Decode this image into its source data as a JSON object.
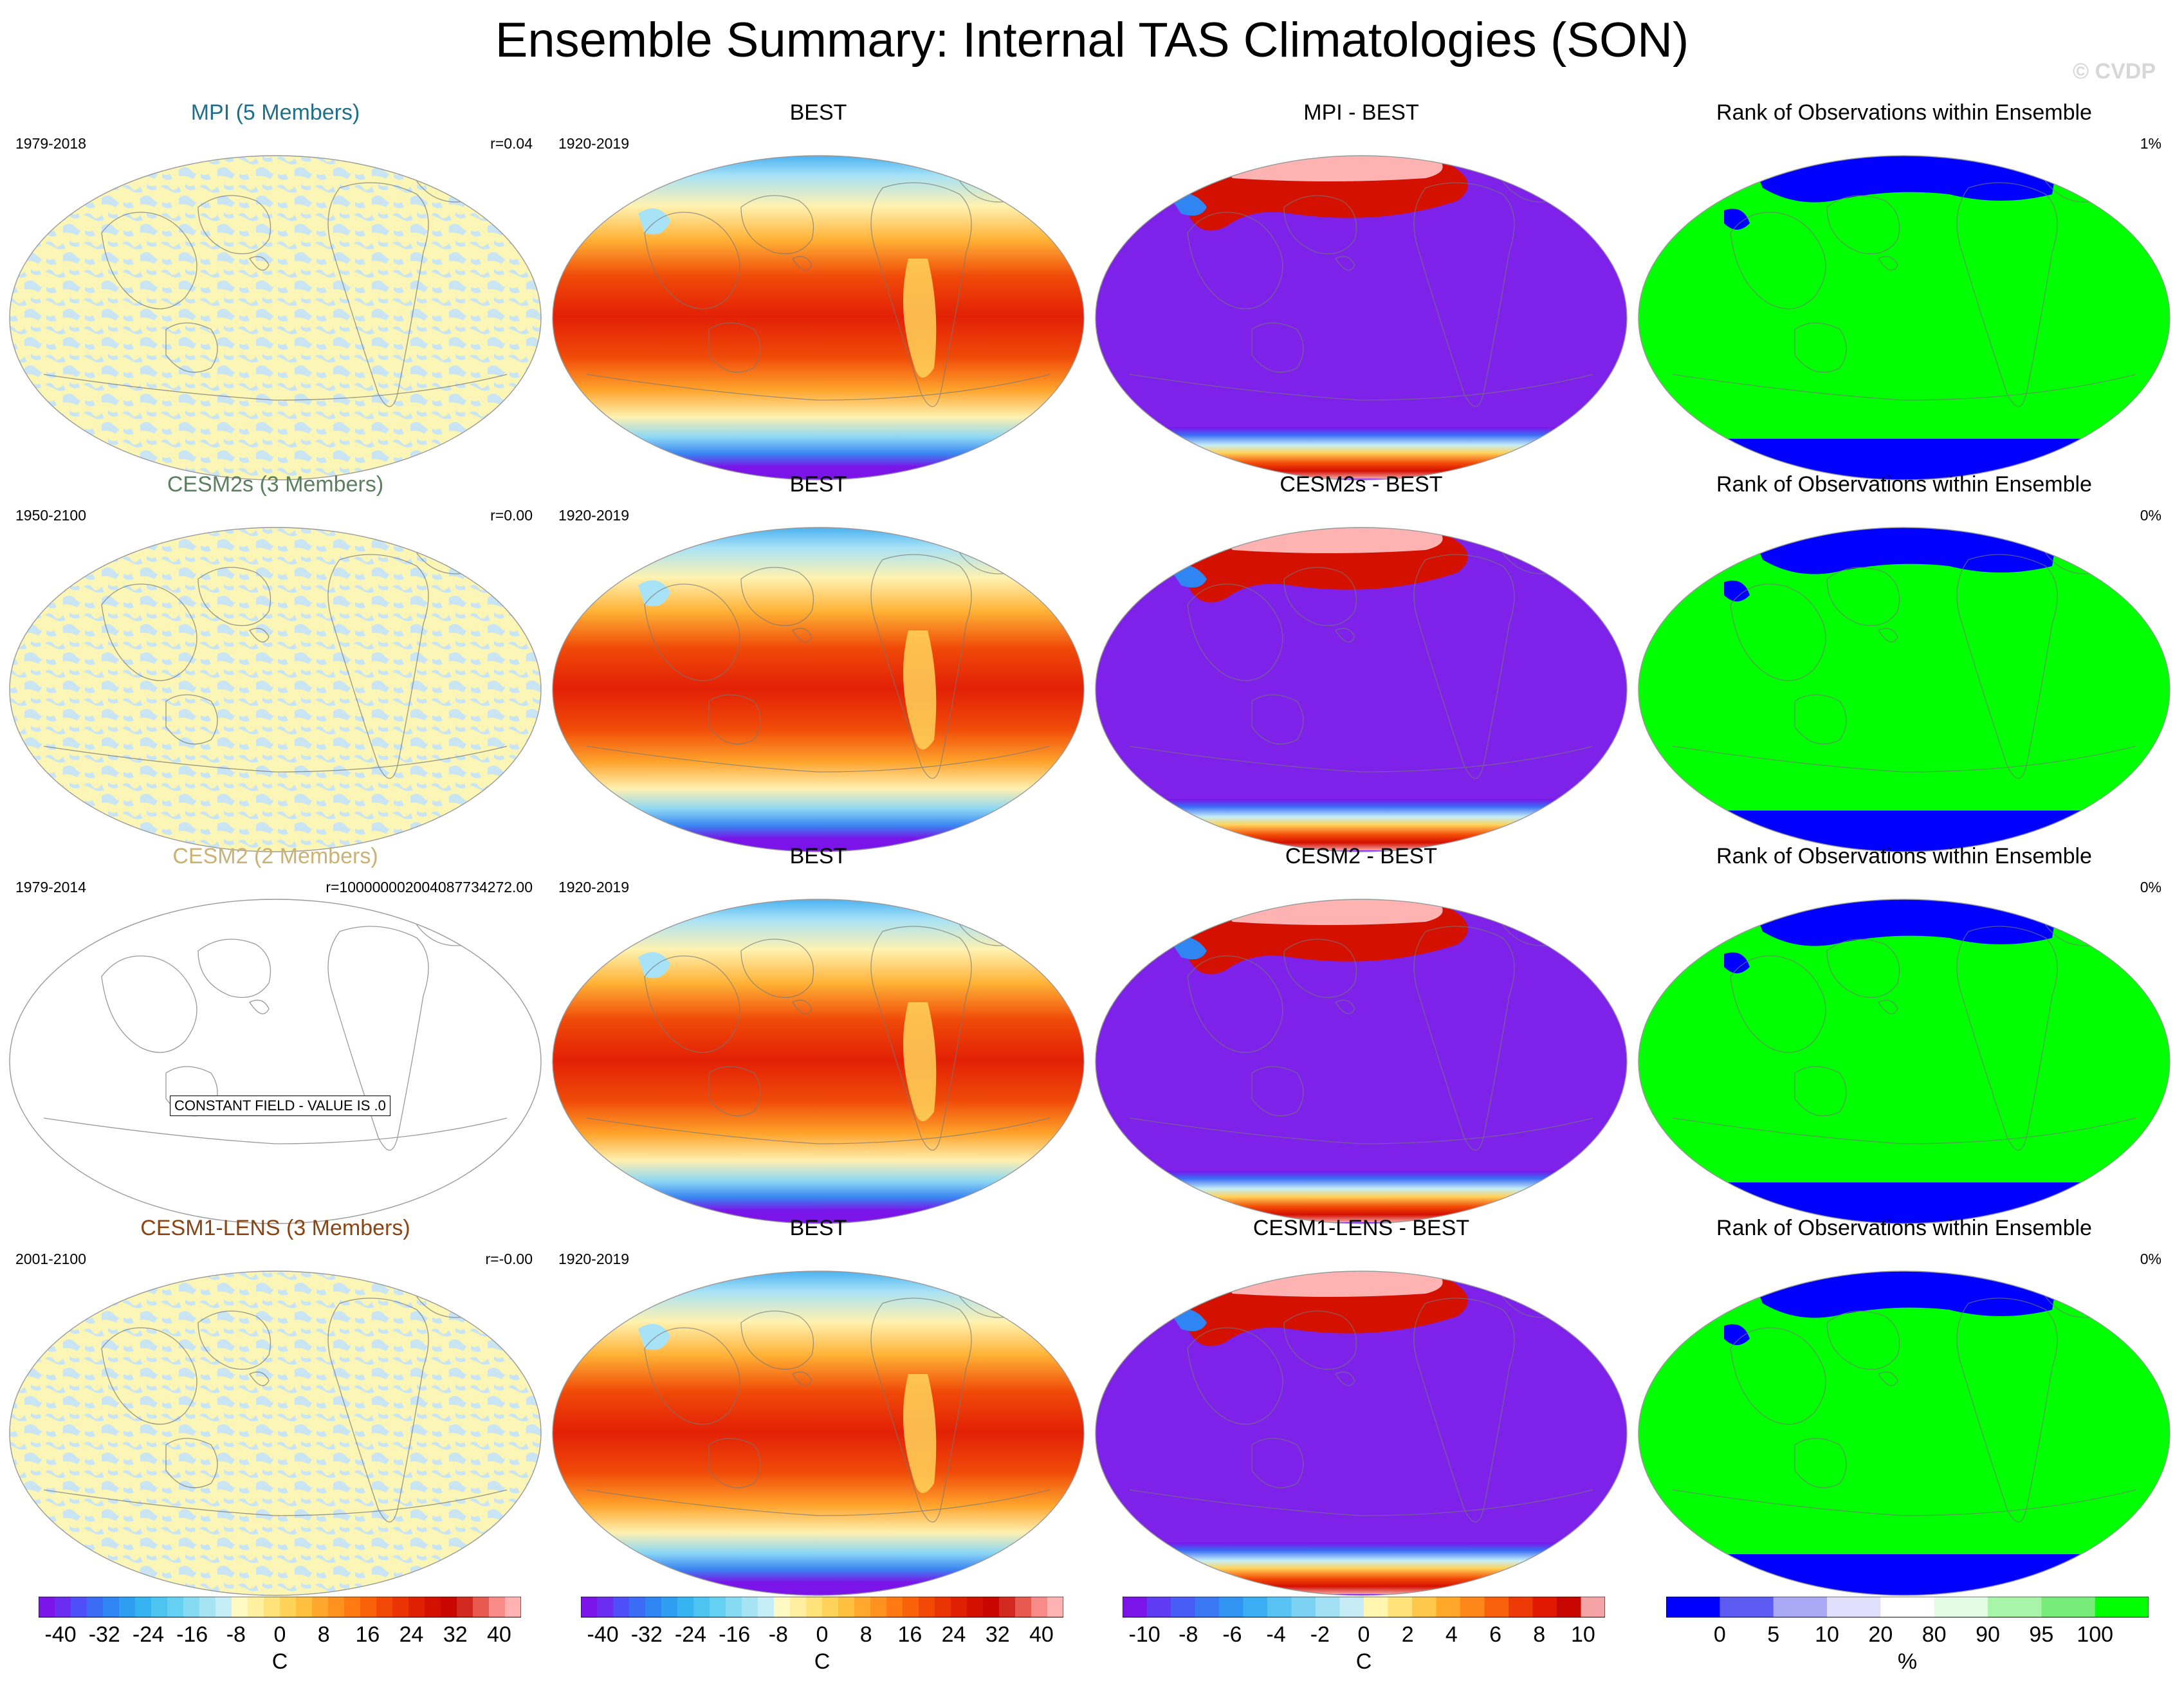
{
  "title": "Ensemble Summary: Internal TAS Climatologies (SON)",
  "watermark": "© CVDP",
  "chart_data": {
    "type": "heatmap",
    "title": "Ensemble Summary: Internal TAS Climatologies (SON)",
    "rows": [
      {
        "ensemble": {
          "title": "MPI (5 Members)",
          "title_color": "#1f6f8b",
          "years": "1979-2018",
          "stat": "r=0.04"
        },
        "obs": {
          "title": "BEST",
          "years": "1920-2019"
        },
        "diff": {
          "title": "MPI - BEST"
        },
        "rank": {
          "title": "Rank of Observations within Ensemble",
          "stat": "1%"
        }
      },
      {
        "ensemble": {
          "title": "CESM2s (3 Members)",
          "title_color": "#5c7f60",
          "years": "1950-2100",
          "stat": "r=0.00"
        },
        "obs": {
          "title": "BEST",
          "years": "1920-2019"
        },
        "diff": {
          "title": "CESM2s - BEST"
        },
        "rank": {
          "title": "Rank of Observations within Ensemble",
          "stat": "0%"
        }
      },
      {
        "ensemble": {
          "title": "CESM2 (2 Members)",
          "title_color": "#c9b274",
          "years": "1979-2014",
          "stat": "r=1000000020040877342​72.00",
          "note": "CONSTANT FIELD - VALUE IS .0"
        },
        "obs": {
          "title": "BEST",
          "years": "1920-2019"
        },
        "diff": {
          "title": "CESM2 - BEST"
        },
        "rank": {
          "title": "Rank of Observations within Ensemble",
          "stat": "0%"
        }
      },
      {
        "ensemble": {
          "title": "CESM1-LENS (3 Members)",
          "title_color": "#8b4513",
          "years": "2001-2100",
          "stat": "r=-0.00"
        },
        "obs": {
          "title": "BEST",
          "years": "1920-2019"
        },
        "diff": {
          "title": "CESM1-LENS - BEST"
        },
        "rank": {
          "title": "Rank of Observations within Ensemble",
          "stat": "0%"
        }
      }
    ],
    "colorbars": [
      {
        "label": "C",
        "ticks": [
          "-40",
          "-32",
          "-24",
          "-16",
          "-8",
          "0",
          "8",
          "16",
          "24",
          "32",
          "40"
        ],
        "colors": [
          "#7a14e8",
          "#6b2ef0",
          "#4f4ff7",
          "#3b6cf5",
          "#2f86f2",
          "#2d9ef0",
          "#36b4f2",
          "#4cc4f2",
          "#66d0f2",
          "#86daf2",
          "#a6e4f4",
          "#c6eef6",
          "#fff9c4",
          "#fff0a0",
          "#ffe37a",
          "#ffd35a",
          "#ffc040",
          "#ffa82d",
          "#ff921e",
          "#ff7a12",
          "#fa620a",
          "#f24a06",
          "#ea3404",
          "#e02002",
          "#d41000",
          "#c80800",
          "#d22a20",
          "#e85a50",
          "#f88a88",
          "#ffb2b2"
        ]
      },
      {
        "label": "C",
        "ticks": [
          "-40",
          "-32",
          "-24",
          "-16",
          "-8",
          "0",
          "8",
          "16",
          "24",
          "32",
          "40"
        ],
        "colors": [
          "#7a14e8",
          "#6b2ef0",
          "#4f4ff7",
          "#3b6cf5",
          "#2f86f2",
          "#2d9ef0",
          "#36b4f2",
          "#4cc4f2",
          "#66d0f2",
          "#86daf2",
          "#a6e4f4",
          "#c6eef6",
          "#fff9c4",
          "#fff0a0",
          "#ffe37a",
          "#ffd35a",
          "#ffc040",
          "#ffa82d",
          "#ff921e",
          "#ff7a12",
          "#fa620a",
          "#f24a06",
          "#ea3404",
          "#e02002",
          "#d41000",
          "#c80800",
          "#d22a20",
          "#e85a50",
          "#f88a88",
          "#ffb2b2"
        ]
      },
      {
        "label": "C",
        "ticks": [
          "-10",
          "-8",
          "-6",
          "-4",
          "-2",
          "0",
          "2",
          "4",
          "6",
          "8",
          "10"
        ],
        "colors": [
          "#7a14e8",
          "#5f3cf4",
          "#4a5cf6",
          "#3b78f4",
          "#3294f2",
          "#3aaef2",
          "#58c2f2",
          "#7cd2f2",
          "#a2e0f4",
          "#c8ecf6",
          "#fff6b0",
          "#ffe27a",
          "#ffc84a",
          "#ffa82a",
          "#ff861a",
          "#f8600c",
          "#ee3a06",
          "#e01802",
          "#c80800",
          "#f4a4a4"
        ]
      },
      {
        "label": "%",
        "ticks": [
          "0",
          "5",
          "10",
          "20",
          "80",
          "90",
          "95",
          "100"
        ],
        "colors": [
          "#0000ff",
          "#5c5cf4",
          "#a8a8f4",
          "#e0e0fc",
          "#ffffff",
          "#e4fce4",
          "#a8f4a8",
          "#78ec78",
          "#00ff00"
        ]
      }
    ]
  }
}
